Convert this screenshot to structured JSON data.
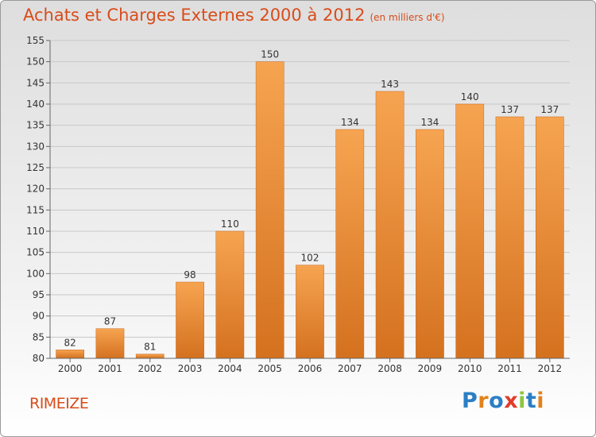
{
  "header": {
    "title": "Achats et Charges Externes 2000 à 2012",
    "unit": "(en milliers d'€)"
  },
  "footer": {
    "commune": "RIMEIZE",
    "logo": {
      "letters": [
        "P",
        "r",
        "o",
        "x",
        "i",
        "t",
        "i"
      ]
    }
  },
  "colors": {
    "accent": "#d94c1a",
    "bar_top": "#f6a451",
    "bar_bottom": "#d4711f",
    "logo_letters": [
      "#2a7fc4",
      "#e2821a",
      "#2a7fc4",
      "#e23b2a",
      "#8cc63f",
      "#2a7fc4",
      "#e2821a"
    ]
  },
  "chart_data": {
    "type": "bar",
    "title": "Achats et Charges Externes 2000 à 2012",
    "subtitle": "(en milliers d'€)",
    "categories": [
      "2000",
      "2001",
      "2002",
      "2003",
      "2004",
      "2005",
      "2006",
      "2007",
      "2008",
      "2009",
      "2010",
      "2011",
      "2012"
    ],
    "values": [
      82,
      87,
      81,
      98,
      110,
      150,
      102,
      134,
      143,
      134,
      140,
      137,
      137
    ],
    "ylim": [
      80,
      155
    ],
    "yticks": [
      80,
      85,
      90,
      95,
      100,
      105,
      110,
      115,
      120,
      125,
      130,
      135,
      140,
      145,
      150,
      155
    ],
    "grid": true,
    "data_labels": true
  }
}
